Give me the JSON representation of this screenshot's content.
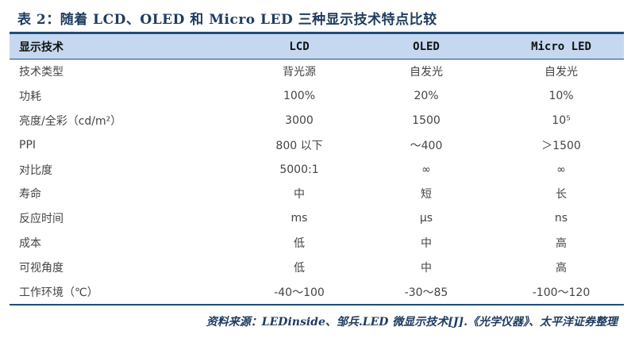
{
  "title": "表 2：随着 LCD、OLED 和 Micro LED 三种显示技术特点比较",
  "table": {
    "headers": [
      "显示技术",
      "LCD",
      "OLED",
      "Micro LED"
    ],
    "rows": [
      [
        "技术类型",
        "背光源",
        "自发光",
        "自发光"
      ],
      [
        "功耗",
        "100%",
        "20%",
        "10%"
      ],
      [
        "亮度/全彩（cd/m²）",
        "3000",
        "1500",
        "10⁵"
      ],
      [
        "PPI",
        "800 以下",
        "～400",
        "＞1500"
      ],
      [
        "对比度",
        "5000:1",
        "∞",
        "∞"
      ],
      [
        "寿命",
        "中",
        "短",
        "长"
      ],
      [
        "反应时间",
        "ms",
        "μs",
        "ns"
      ],
      [
        "成本",
        "低",
        "中",
        "高"
      ],
      [
        "可视角度",
        "低",
        "中",
        "高"
      ],
      [
        "工作环境（℃）",
        "-40～100",
        "-30～85",
        "-100～120"
      ]
    ]
  },
  "source": "资料来源：LEDinside、邹兵.LED 微显示技术[J].《光学仪器》、太平洋证券整理",
  "colors": {
    "header_bg": "#c5d8ef",
    "rule": "#1f4e79",
    "title": "#1f3b5f"
  }
}
